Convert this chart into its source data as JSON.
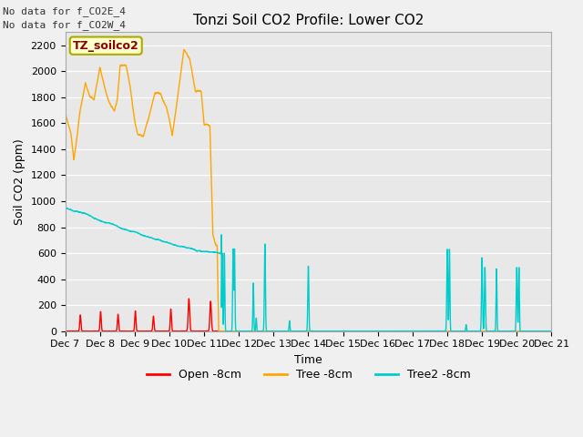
{
  "title": "Tonzi Soil CO2 Profile: Lower CO2",
  "xlabel": "Time",
  "ylabel": "Soil CO2 (ppm)",
  "top_note_line1": "No data for f_CO2E_4",
  "top_note_line2": "No data for f_CO2W_4",
  "legend_label": "TZ_soilco2",
  "legend_entries": [
    "Open -8cm",
    "Tree -8cm",
    "Tree2 -8cm"
  ],
  "legend_colors": [
    "#ff0000",
    "#ffa500",
    "#00cccc"
  ],
  "fig_bg_color": "#f0f0f0",
  "plot_bg_color": "#e8e8e8",
  "ylim": [
    0,
    2300
  ],
  "yticks": [
    0,
    200,
    400,
    600,
    800,
    1000,
    1200,
    1400,
    1600,
    1800,
    2000,
    2200
  ],
  "grid_color": "#ffffff",
  "line_width": 1.0,
  "title_fontsize": 11,
  "axis_fontsize": 9,
  "tick_fontsize": 8
}
